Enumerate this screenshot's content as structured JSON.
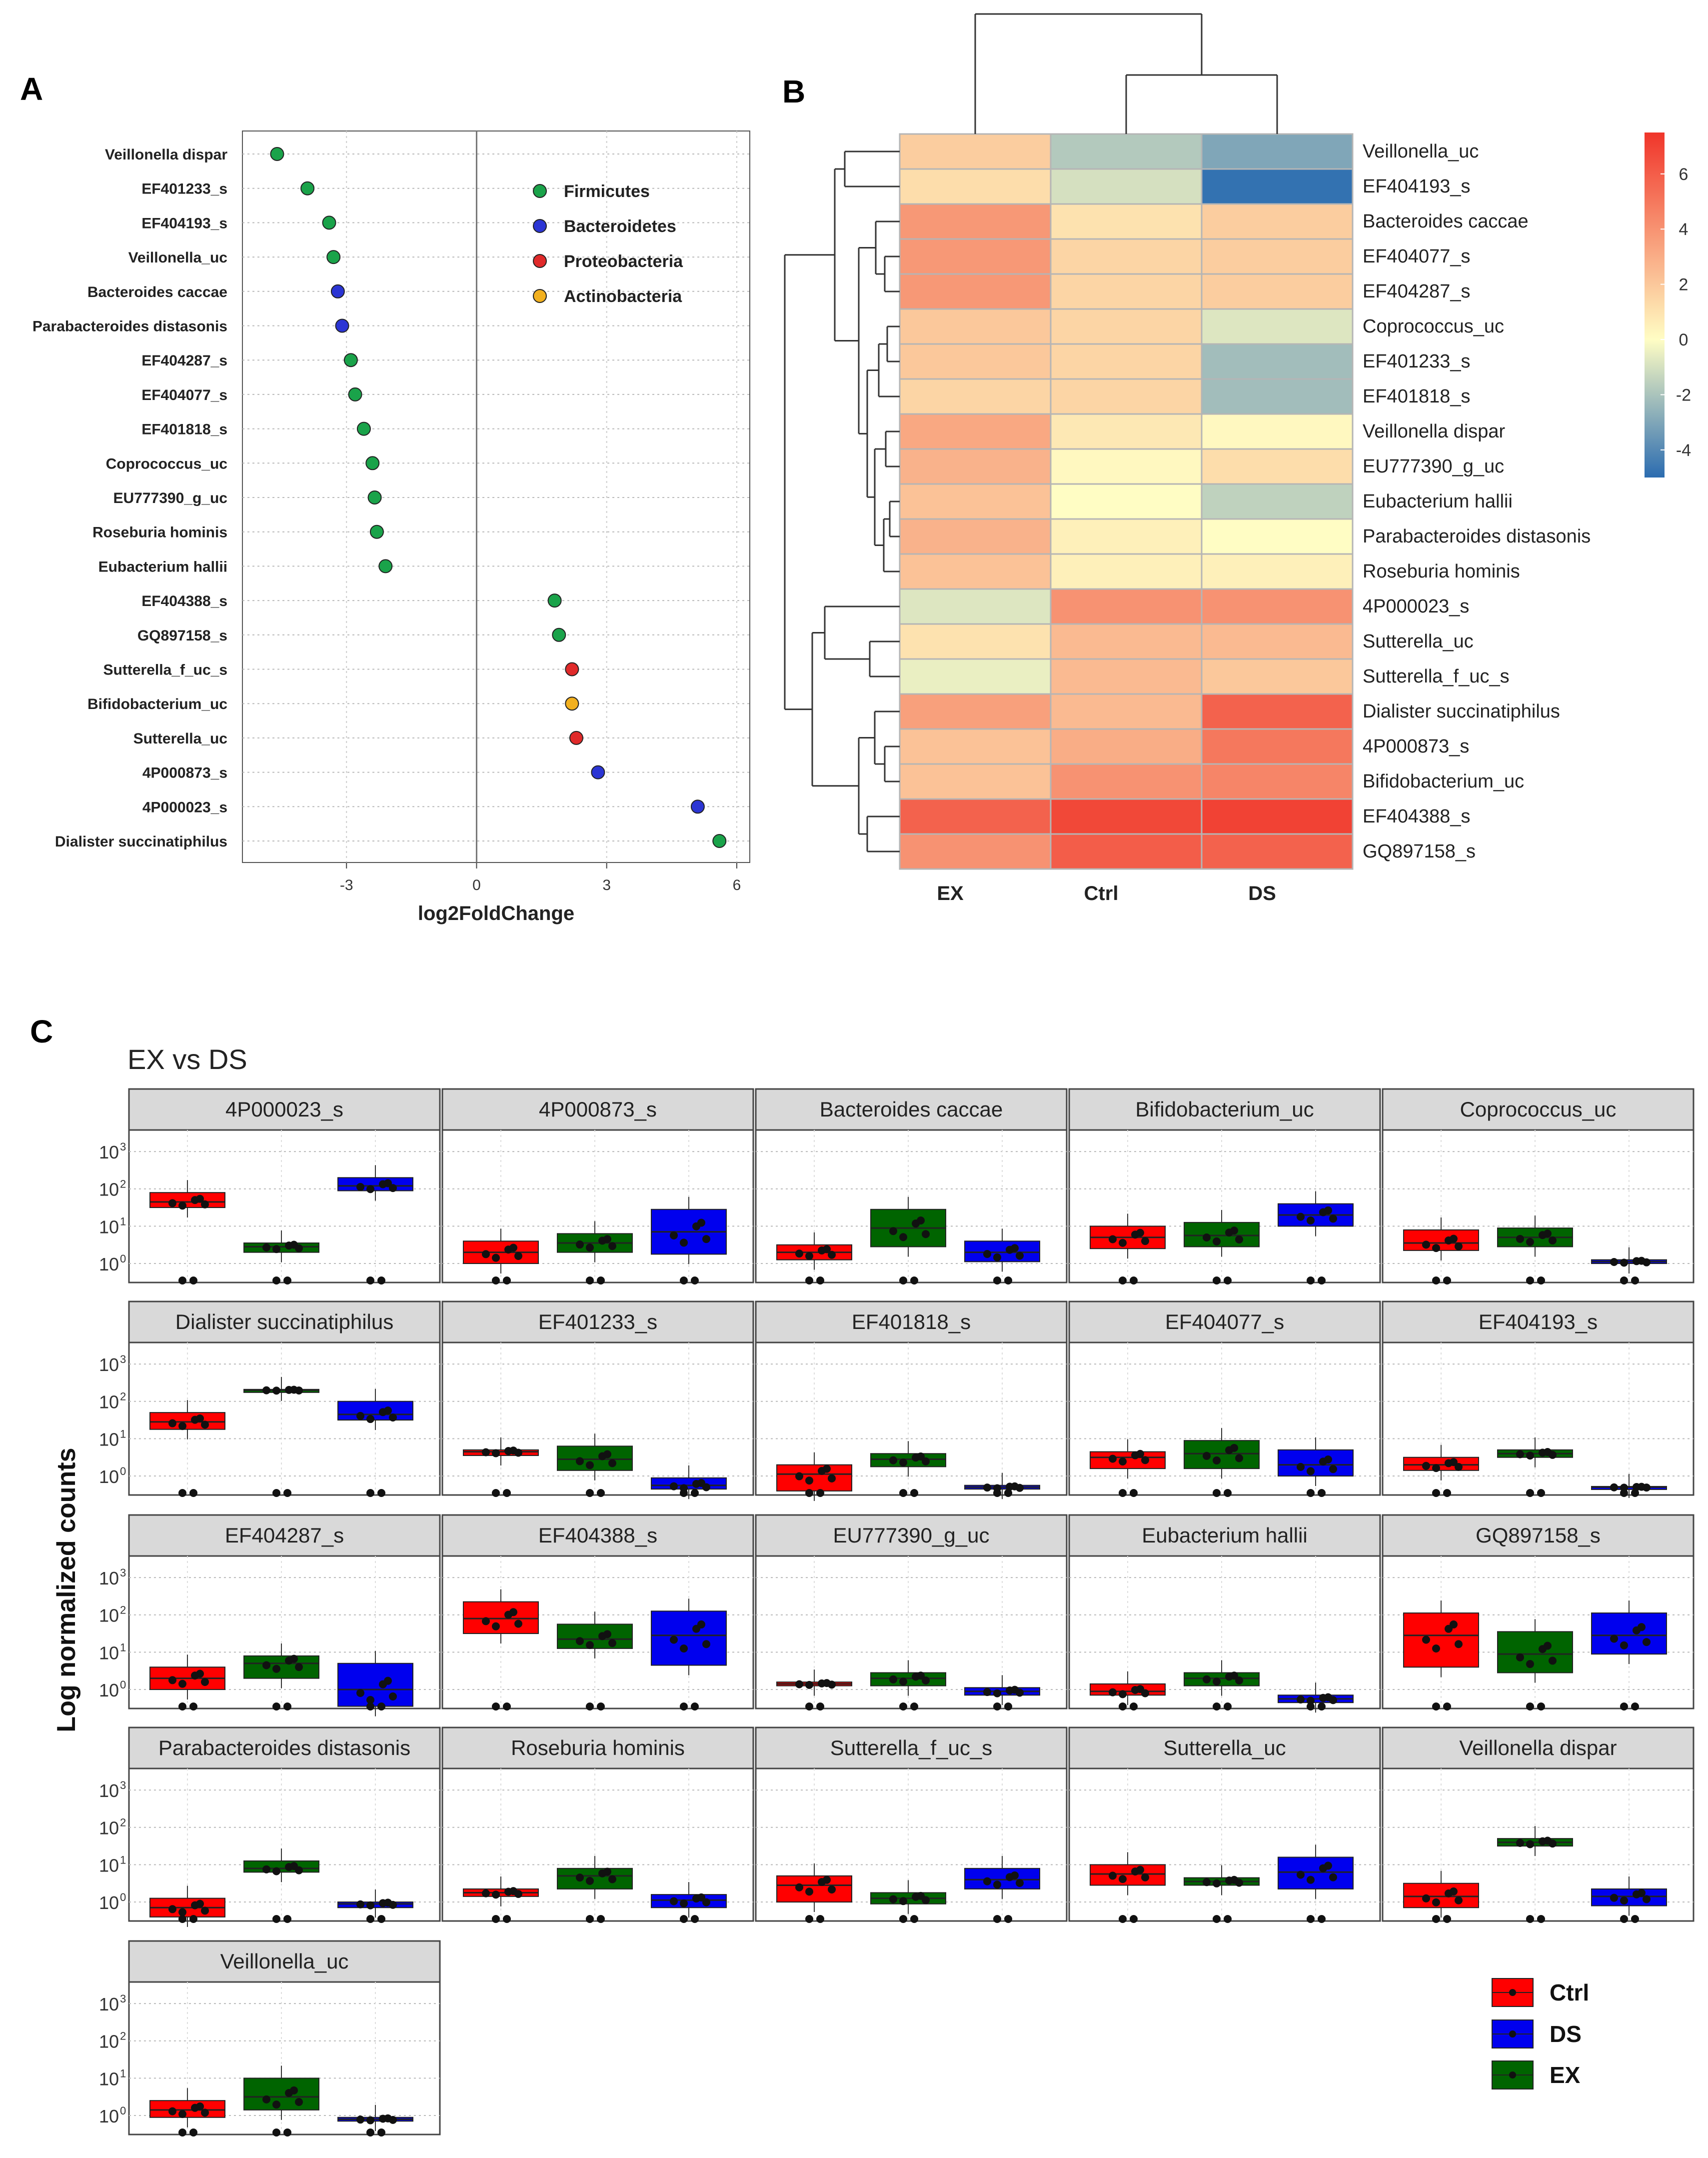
{
  "panel_labels": {
    "a": "A",
    "b": "B",
    "c": "C"
  },
  "chart_data": [
    {
      "id": "A",
      "type": "scatter",
      "xlabel": "log2FoldChange",
      "xlim": [
        -5.4,
        6.3
      ],
      "xticks": [
        -3,
        0,
        3,
        6
      ],
      "tick_labels": [
        "-3",
        "0",
        "3",
        "6"
      ],
      "legend_position": "top-center",
      "phyla": [
        {
          "name": "Firmicutes",
          "color": "#1aa34a"
        },
        {
          "name": "Bacteroidetes",
          "color": "#2b35d4"
        },
        {
          "name": "Proteobacteria",
          "color": "#e02a2a"
        },
        {
          "name": "Actinobacteria",
          "color": "#f2b01e"
        }
      ],
      "points": [
        {
          "label": "Veillonella dispar",
          "value": -4.6,
          "phylum": 0
        },
        {
          "label": "EF401233_s",
          "value": -3.9,
          "phylum": 0
        },
        {
          "label": "EF404193_s",
          "value": -3.4,
          "phylum": 0
        },
        {
          "label": "Veillonella_uc",
          "value": -3.3,
          "phylum": 0
        },
        {
          "label": "Bacteroides caccae",
          "value": -3.2,
          "phylum": 1
        },
        {
          "label": "Parabacteroides distasonis",
          "value": -3.1,
          "phylum": 1
        },
        {
          "label": "EF404287_s",
          "value": -2.9,
          "phylum": 0
        },
        {
          "label": "EF404077_s",
          "value": -2.8,
          "phylum": 0
        },
        {
          "label": "EF401818_s",
          "value": -2.6,
          "phylum": 0
        },
        {
          "label": "Coprococcus_uc",
          "value": -2.4,
          "phylum": 0
        },
        {
          "label": "EU777390_g_uc",
          "value": -2.35,
          "phylum": 0
        },
        {
          "label": "Roseburia hominis",
          "value": -2.3,
          "phylum": 0
        },
        {
          "label": "Eubacterium hallii",
          "value": -2.1,
          "phylum": 0
        },
        {
          "label": "EF404388_s",
          "value": 1.8,
          "phylum": 0
        },
        {
          "label": "GQ897158_s",
          "value": 1.9,
          "phylum": 0
        },
        {
          "label": "Sutterella_f_uc_s",
          "value": 2.2,
          "phylum": 2
        },
        {
          "label": "Bifidobacterium_uc",
          "value": 2.2,
          "phylum": 3
        },
        {
          "label": "Sutterella_uc",
          "value": 2.3,
          "phylum": 2
        },
        {
          "label": "4P000873_s",
          "value": 2.8,
          "phylum": 1
        },
        {
          "label": "4P000023_s",
          "value": 5.1,
          "phylum": 1
        },
        {
          "label": "Dialister succinatiphilus",
          "value": 5.6,
          "phylum": 0
        }
      ]
    },
    {
      "id": "B",
      "type": "heatmap",
      "columns": [
        "EX",
        "Ctrl",
        "DS"
      ],
      "rows": [
        "Veillonella_uc",
        "EF404193_s",
        "Bacteroides caccae",
        "EF404077_s",
        "EF404287_s",
        "Coprococcus_uc",
        "EF401233_s",
        "EF401818_s",
        "Veillonella dispar",
        "EU777390_g_uc",
        "Eubacterium hallii",
        "Parabacteroides distasonis",
        "Roseburia hominis",
        "4P000023_s",
        "Sutterella_uc",
        "Sutterella_f_uc_s",
        "Dialister succinatiphilus",
        "4P000873_s",
        "Bifidobacterium_uc",
        "EF404388_s",
        "GQ897158_s"
      ],
      "values": [
        [
          1.8,
          -1.8,
          -3.0
        ],
        [
          1.2,
          -1.0,
          -4.8
        ],
        [
          3.8,
          1.0,
          1.8
        ],
        [
          3.8,
          1.5,
          1.8
        ],
        [
          3.8,
          1.5,
          1.8
        ],
        [
          2.0,
          1.5,
          -0.8
        ],
        [
          2.0,
          1.5,
          -2.2
        ],
        [
          1.5,
          1.5,
          -2.2
        ],
        [
          3.2,
          0.8,
          0.2
        ],
        [
          2.8,
          0.2,
          1.2
        ],
        [
          2.2,
          0.0,
          -1.5
        ],
        [
          2.8,
          0.5,
          0.0
        ],
        [
          2.2,
          0.5,
          0.5
        ],
        [
          -0.8,
          4.0,
          4.0
        ],
        [
          1.0,
          2.5,
          2.5
        ],
        [
          -0.5,
          2.5,
          2.0
        ],
        [
          3.5,
          2.5,
          5.8
        ],
        [
          2.2,
          3.0,
          5.0
        ],
        [
          2.2,
          4.0,
          4.5
        ],
        [
          5.8,
          6.8,
          7.0
        ],
        [
          4.0,
          6.0,
          5.8
        ]
      ],
      "legend_ticks": [
        6,
        4,
        2,
        0,
        -2,
        -4
      ],
      "legend_tick_labels": [
        "6",
        "4",
        "2",
        "0",
        "-2",
        "-4"
      ],
      "value_range": [
        -5,
        7.5
      ],
      "colors": {
        "low": "#2b6cb0",
        "mid": "#fffdc4",
        "high": "#f0352a"
      }
    },
    {
      "id": "C",
      "type": "box",
      "title": "EX vs DS",
      "ylabel": "Log normalized counts",
      "y_scale": "log10",
      "yticks": [
        0,
        1,
        2,
        3
      ],
      "ytick_base": "10",
      "groups": [
        "Ctrl",
        "DS",
        "EX"
      ],
      "group_colors": [
        "#ff0000",
        "#0000ee",
        "#006400"
      ],
      "facets": [
        {
          "name": "4P000023_s",
          "boxes": [
            [
              1.65,
              1.5,
              1.9
            ],
            [
              2.08,
              1.95,
              2.3
            ],
            [
              0.45,
              0.3,
              0.55
            ]
          ]
        },
        {
          "name": "4P000873_s",
          "boxes": [
            [
              0.3,
              0.0,
              0.6
            ],
            [
              0.85,
              0.25,
              1.45
            ],
            [
              0.55,
              0.3,
              0.8
            ]
          ]
        },
        {
          "name": "Bacteroides caccae",
          "boxes": [
            [
              0.3,
              0.1,
              0.5
            ],
            [
              0.3,
              0.05,
              0.6
            ],
            [
              0.95,
              0.45,
              1.45
            ]
          ]
        },
        {
          "name": "Bifidobacterium_uc",
          "boxes": [
            [
              0.7,
              0.4,
              1.0
            ],
            [
              1.3,
              1.0,
              1.6
            ],
            [
              0.75,
              0.45,
              1.1
            ]
          ]
        },
        {
          "name": "Coprococcus_uc",
          "boxes": [
            [
              0.55,
              0.35,
              0.9
            ],
            [
              0.05,
              0.0,
              0.1
            ],
            [
              0.7,
              0.45,
              0.95
            ]
          ]
        },
        {
          "name": "Dialister succinatiphilus",
          "boxes": [
            [
              1.45,
              1.25,
              1.7
            ],
            [
              1.65,
              1.5,
              2.0
            ],
            [
              2.3,
              2.28,
              2.32
            ]
          ]
        },
        {
          "name": "EF401233_s",
          "boxes": [
            [
              0.65,
              0.55,
              0.7
            ],
            [
              -0.25,
              -0.35,
              -0.05
            ],
            [
              0.45,
              0.15,
              0.8
            ]
          ]
        },
        {
          "name": "EF401818_s",
          "boxes": [
            [
              0.05,
              -0.4,
              0.3
            ],
            [
              -0.3,
              -0.35,
              -0.25
            ],
            [
              0.45,
              0.25,
              0.6
            ]
          ]
        },
        {
          "name": "EF404077_s",
          "boxes": [
            [
              0.5,
              0.2,
              0.65
            ],
            [
              0.3,
              0.0,
              0.7
            ],
            [
              0.6,
              0.2,
              0.95
            ]
          ]
        },
        {
          "name": "EF404193_s",
          "boxes": [
            [
              0.3,
              0.15,
              0.5
            ],
            [
              -0.3,
              -0.32,
              -0.28
            ],
            [
              0.6,
              0.5,
              0.7
            ]
          ]
        },
        {
          "name": "EF404287_s",
          "boxes": [
            [
              0.3,
              0.0,
              0.6
            ],
            [
              0.0,
              -0.45,
              0.7
            ],
            [
              0.7,
              0.3,
              0.9
            ]
          ]
        },
        {
          "name": "EF404388_s",
          "boxes": [
            [
              1.9,
              1.5,
              2.35
            ],
            [
              1.45,
              0.65,
              2.1
            ],
            [
              1.35,
              1.1,
              1.75
            ]
          ]
        },
        {
          "name": "EU777390_g_uc",
          "boxes": [
            [
              0.15,
              0.1,
              0.2
            ],
            [
              -0.05,
              -0.15,
              0.05
            ],
            [
              0.3,
              0.1,
              0.45
            ]
          ]
        },
        {
          "name": "Eubacterium hallii",
          "boxes": [
            [
              -0.05,
              -0.15,
              0.15
            ],
            [
              -0.25,
              -0.35,
              -0.15
            ],
            [
              0.3,
              0.1,
              0.45
            ]
          ]
        },
        {
          "name": "GQ897158_s",
          "boxes": [
            [
              1.45,
              0.6,
              2.05
            ],
            [
              1.45,
              0.95,
              2.05
            ],
            [
              0.95,
              0.45,
              1.55
            ]
          ]
        },
        {
          "name": "Parabacteroides distasonis",
          "boxes": [
            [
              -0.15,
              -0.4,
              0.1
            ],
            [
              -0.05,
              -0.15,
              0.0
            ],
            [
              0.9,
              0.8,
              1.1
            ]
          ]
        },
        {
          "name": "Roseburia hominis",
          "boxes": [
            [
              0.25,
              0.15,
              0.35
            ],
            [
              0.05,
              -0.15,
              0.2
            ],
            [
              0.7,
              0.35,
              0.9
            ]
          ]
        },
        {
          "name": "Sutterella_f_uc_s",
          "boxes": [
            [
              0.45,
              0.0,
              0.7
            ],
            [
              0.6,
              0.35,
              0.9
            ],
            [
              0.1,
              -0.05,
              0.25
            ]
          ]
        },
        {
          "name": "Sutterella_uc",
          "boxes": [
            [
              0.75,
              0.45,
              1.0
            ],
            [
              0.8,
              0.35,
              1.2
            ],
            [
              0.55,
              0.45,
              0.65
            ]
          ]
        },
        {
          "name": "Veillonella dispar",
          "boxes": [
            [
              0.15,
              -0.15,
              0.5
            ],
            [
              0.15,
              -0.1,
              0.35
            ],
            [
              1.6,
              1.5,
              1.7
            ]
          ]
        },
        {
          "name": "Veillonella_uc",
          "boxes": [
            [
              0.15,
              -0.05,
              0.4
            ],
            [
              -0.1,
              -0.15,
              -0.05
            ],
            [
              0.5,
              0.15,
              1.0
            ]
          ]
        }
      ]
    }
  ]
}
